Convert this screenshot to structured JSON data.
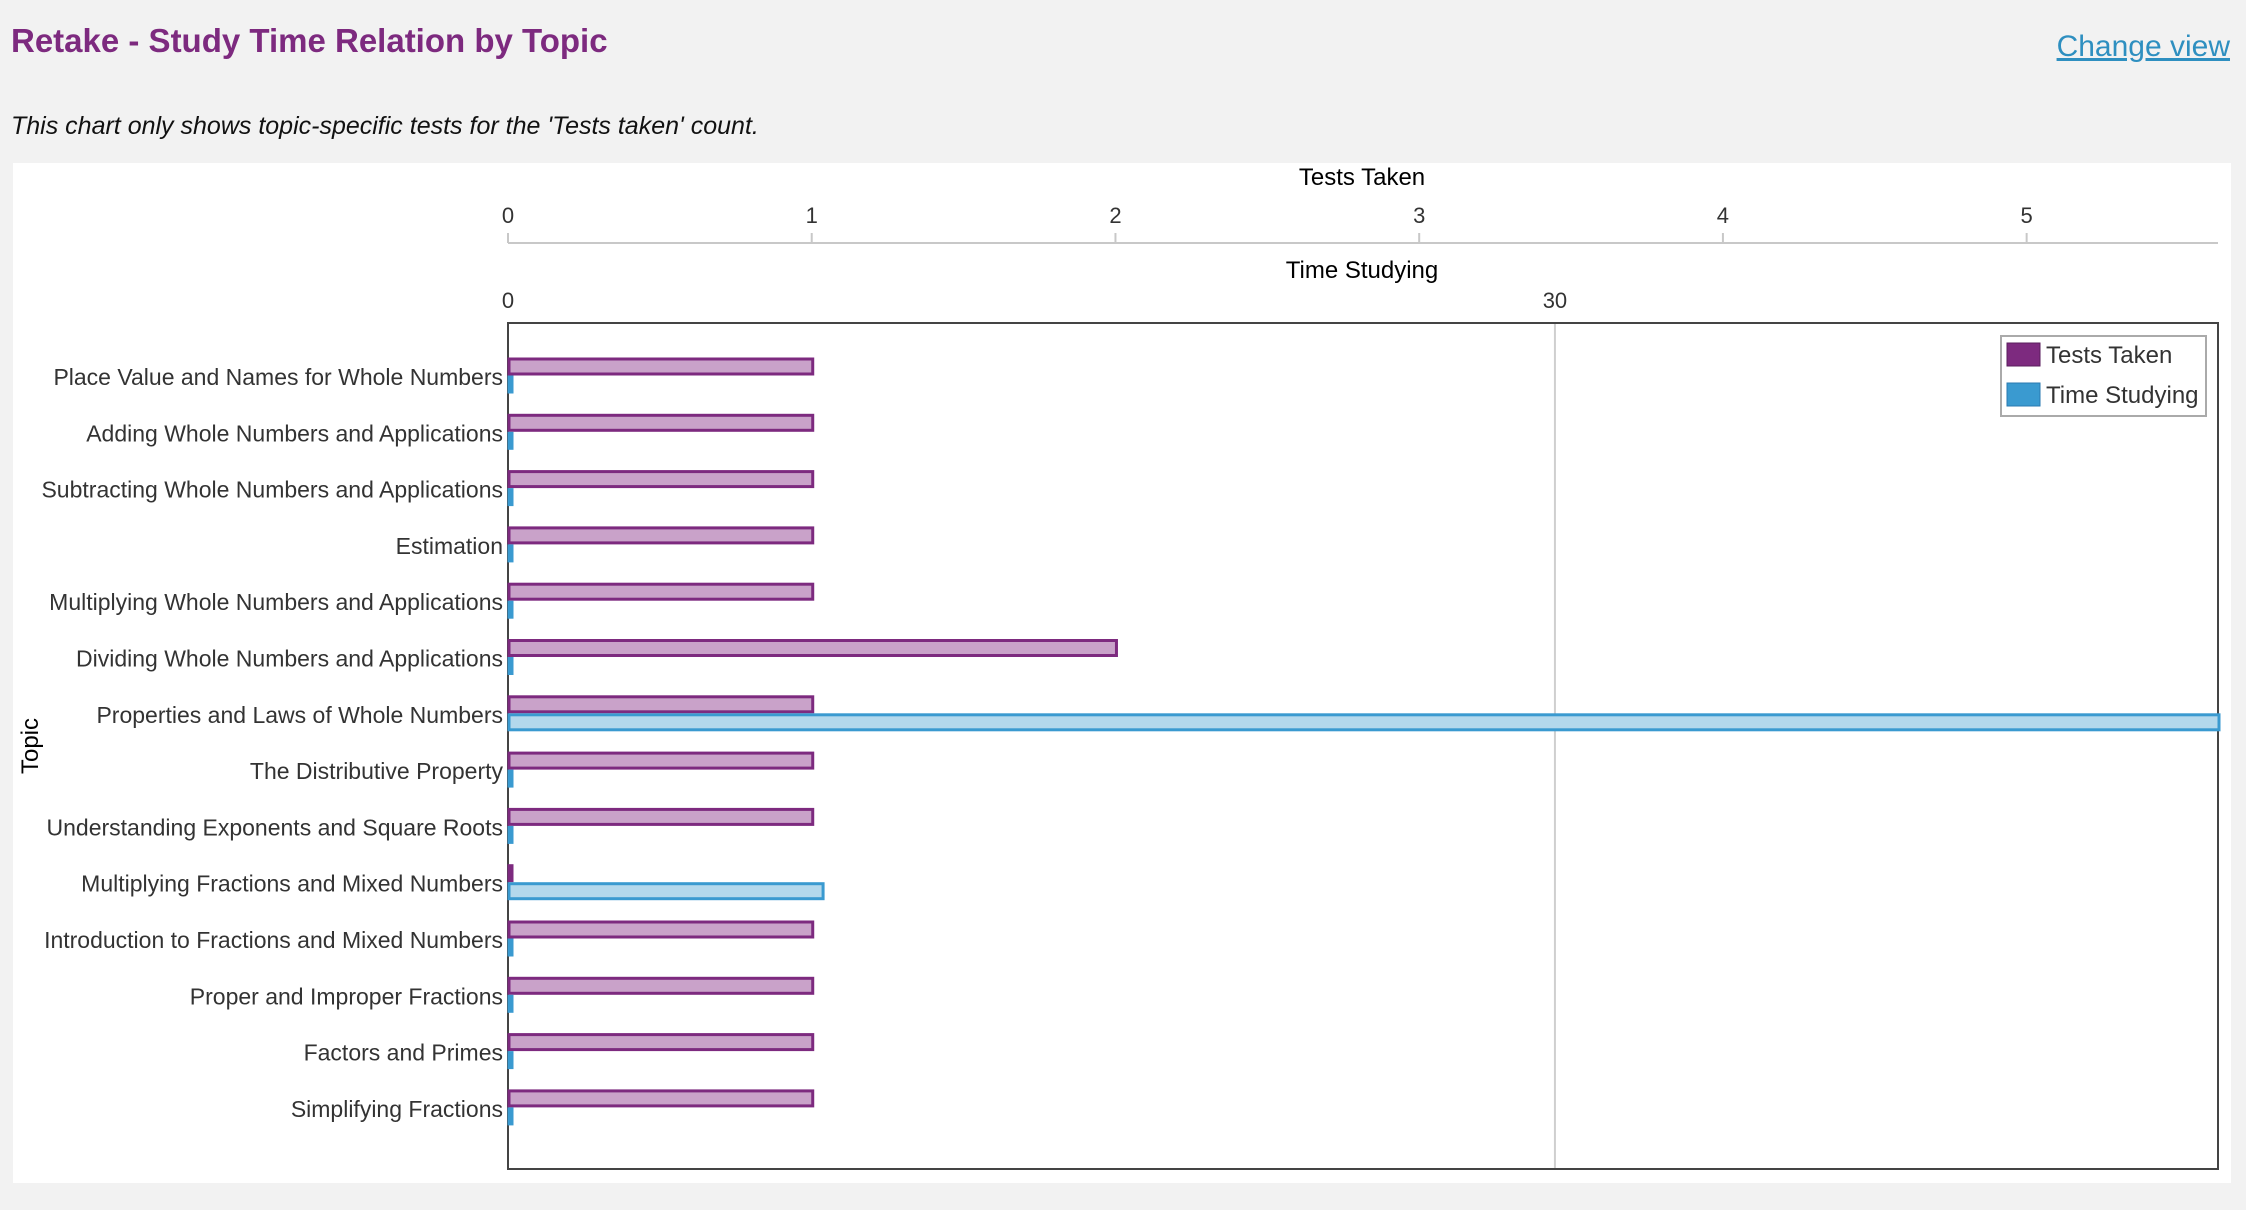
{
  "header": {
    "title": "Retake - Study Time Relation by Topic",
    "change_view_label": "Change view",
    "note": "This chart only shows topic-specific tests for the 'Tests taken' count."
  },
  "colors": {
    "tests_fill": "#c9a2c9",
    "tests_stroke": "#7d2a7f",
    "time_fill": "#b3d8ec",
    "time_stroke": "#3a9ad0",
    "legend_tests": "#7d2a7f",
    "legend_time": "#3a9ad0"
  },
  "chart_data": {
    "type": "bar",
    "orientation": "horizontal",
    "ylabel": "Topic",
    "categories": [
      "Place Value and Names for Whole Numbers",
      "Adding Whole Numbers and Applications",
      "Subtracting Whole Numbers and Applications",
      "Estimation",
      "Multiplying Whole Numbers and Applications",
      "Dividing Whole Numbers and Applications",
      "Properties and Laws of Whole Numbers",
      "The Distributive Property",
      "Understanding Exponents and Square Roots",
      "Multiplying Fractions and Mixed Numbers",
      "Introduction to Fractions and Mixed Numbers",
      "Proper and Improper Fractions",
      "Factors and Primes",
      "Simplifying Fractions"
    ],
    "series": [
      {
        "name": "Tests Taken",
        "axis": "top",
        "values": [
          1,
          1,
          1,
          1,
          1,
          2,
          1,
          1,
          1,
          0,
          1,
          1,
          1,
          1
        ]
      },
      {
        "name": "Time Studying",
        "axis": "secondary-top",
        "values": [
          0,
          0,
          0,
          0,
          0,
          0,
          55,
          0,
          0,
          9,
          0,
          0,
          0,
          0
        ]
      }
    ],
    "axes": {
      "tests": {
        "label": "Tests Taken",
        "ticks": [
          0,
          1,
          2,
          3,
          4,
          5
        ],
        "range": [
          0,
          5.63
        ]
      },
      "time": {
        "label": "Time Studying",
        "ticks": [
          0,
          30
        ],
        "range": [
          0,
          49
        ]
      }
    },
    "legend": {
      "position": "top-right",
      "entries": [
        "Tests Taken",
        "Time Studying"
      ]
    },
    "grid": "vertical line at Time Studying tick 30"
  }
}
